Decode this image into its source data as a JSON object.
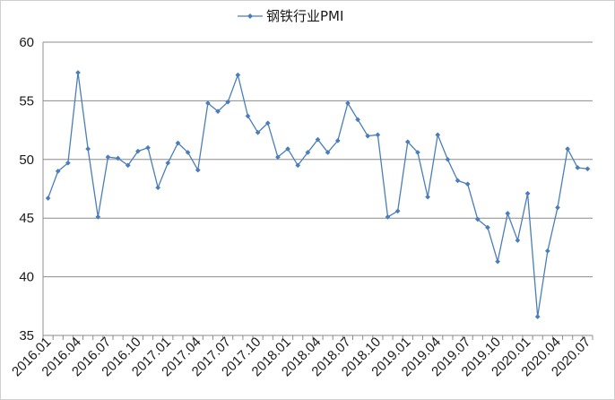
{
  "chart_data": {
    "type": "line",
    "title": "",
    "xlabel": "",
    "ylabel": "",
    "ylim": [
      35,
      60
    ],
    "yticks": [
      35,
      40,
      45,
      50,
      55,
      60
    ],
    "grid": true,
    "legend_position": "top-center",
    "categories": [
      "2016.01",
      "2016.02",
      "2016.03",
      "2016.04",
      "2016.05",
      "2016.06",
      "2016.07",
      "2016.08",
      "2016.09",
      "2016.10",
      "2016.11",
      "2016.12",
      "2017.01",
      "2017.02",
      "2017.03",
      "2017.04",
      "2017.05",
      "2017.06",
      "2017.07",
      "2017.08",
      "2017.09",
      "2017.10",
      "2017.11",
      "2017.12",
      "2018.01",
      "2018.02",
      "2018.03",
      "2018.04",
      "2018.05",
      "2018.06",
      "2018.07",
      "2018.08",
      "2018.09",
      "2018.10",
      "2018.11",
      "2018.12",
      "2019.01",
      "2019.02",
      "2019.03",
      "2019.04",
      "2019.05",
      "2019.06",
      "2019.07",
      "2019.08",
      "2019.09",
      "2019.10",
      "2019.11",
      "2019.12",
      "2020.01",
      "2020.02",
      "2020.03",
      "2020.04",
      "2020.05",
      "2020.06",
      "2020.07"
    ],
    "xtick_labels": [
      "2016.01",
      "2016.04",
      "2016.07",
      "2016.10",
      "2017.01",
      "2017.04",
      "2017.07",
      "2017.10",
      "2018.01",
      "2018.04",
      "2018.07",
      "2018.10",
      "2019.01",
      "2019.04",
      "2019.07",
      "2019.10",
      "2020.01",
      "2020.04",
      "2020.07"
    ],
    "series": [
      {
        "name": "钢铁行业PMI",
        "color": "#4a7ebb",
        "values": [
          46.7,
          49.0,
          49.7,
          57.4,
          50.9,
          45.1,
          50.2,
          50.1,
          49.5,
          50.7,
          51.0,
          47.6,
          49.7,
          51.4,
          50.6,
          49.1,
          54.8,
          54.1,
          54.9,
          57.2,
          53.7,
          52.3,
          53.1,
          50.2,
          50.9,
          49.5,
          50.6,
          51.7,
          50.6,
          51.6,
          54.8,
          53.4,
          52.0,
          52.1,
          45.1,
          45.6,
          51.5,
          50.6,
          46.8,
          52.1,
          50.0,
          48.2,
          47.9,
          44.9,
          44.2,
          41.3,
          45.4,
          43.1,
          47.1,
          36.6,
          42.2,
          45.9,
          50.9,
          49.3,
          49.2
        ]
      }
    ]
  }
}
